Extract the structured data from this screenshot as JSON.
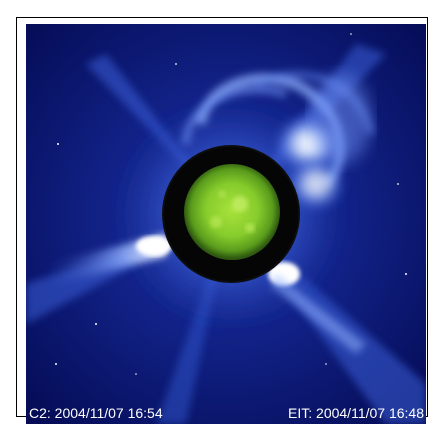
{
  "image": {
    "subject": "solar-corona-composite",
    "colors": {
      "background": "#061061",
      "corona_highlight": "#ffffff",
      "corona_mid": "#4a7af0",
      "occulter": "#050505",
      "sun_disk": "#7fc92a"
    }
  },
  "captions": {
    "c2": "C2: 2004/11/07 16:54",
    "eit": "EIT: 2004/11/07 16:48"
  }
}
